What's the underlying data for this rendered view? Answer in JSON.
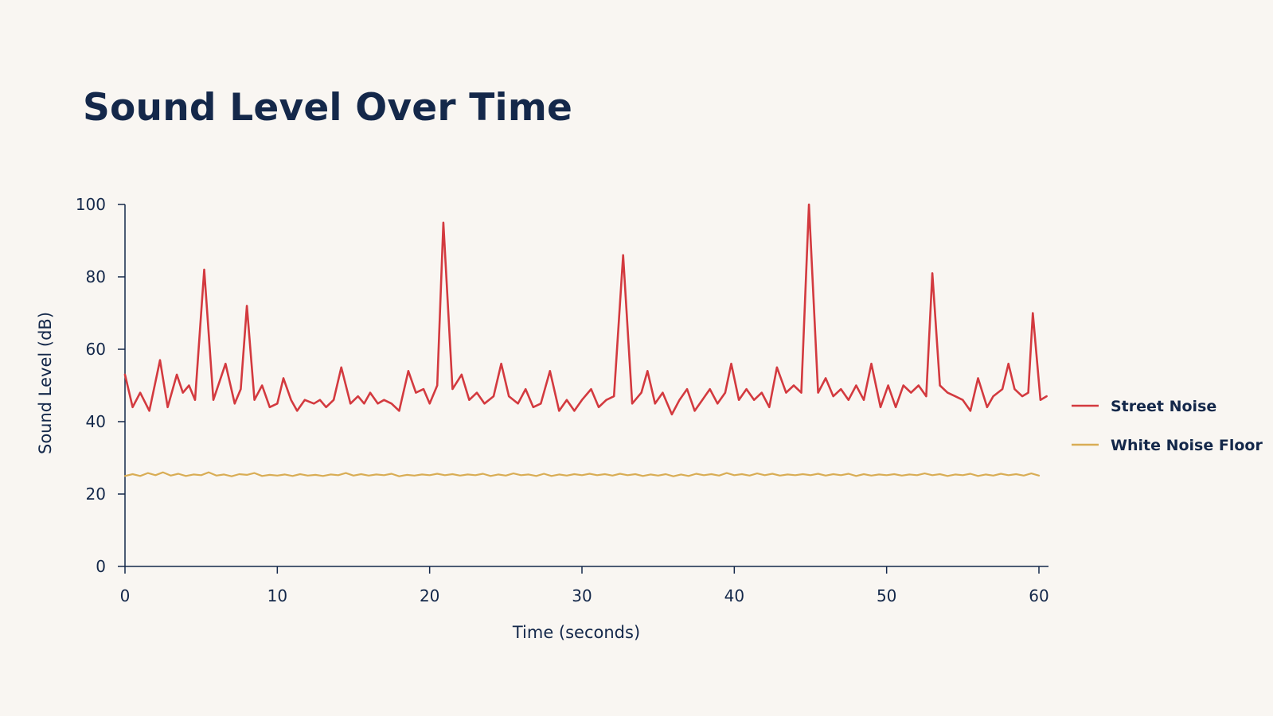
{
  "chart_data": {
    "type": "line",
    "title": "Sound Level Over Time",
    "xlabel": "Time (seconds)",
    "ylabel": "Sound Level (dB)",
    "xlim": [
      0,
      60
    ],
    "ylim": [
      0,
      100
    ],
    "xticks": [
      0,
      10,
      20,
      30,
      40,
      50,
      60
    ],
    "yticks": [
      0,
      20,
      40,
      60,
      80,
      100
    ],
    "grid": false,
    "legend_position": "right",
    "series": [
      {
        "name": "Street Noise",
        "color": "#d33a3f",
        "points": [
          [
            0,
            53
          ],
          [
            0.5,
            44
          ],
          [
            1.0,
            48
          ],
          [
            1.6,
            43
          ],
          [
            2.3,
            57
          ],
          [
            2.8,
            44
          ],
          [
            3.4,
            53
          ],
          [
            3.8,
            48
          ],
          [
            4.2,
            50
          ],
          [
            4.6,
            46
          ],
          [
            5.2,
            82
          ],
          [
            5.8,
            46
          ],
          [
            6.6,
            56
          ],
          [
            7.2,
            45
          ],
          [
            7.6,
            49
          ],
          [
            8.0,
            72
          ],
          [
            8.5,
            46
          ],
          [
            9.0,
            50
          ],
          [
            9.5,
            44
          ],
          [
            10.0,
            45
          ],
          [
            10.4,
            52
          ],
          [
            10.9,
            46
          ],
          [
            11.3,
            43
          ],
          [
            11.8,
            46
          ],
          [
            12.4,
            45
          ],
          [
            12.8,
            46
          ],
          [
            13.2,
            44
          ],
          [
            13.7,
            46
          ],
          [
            14.2,
            55
          ],
          [
            14.8,
            45
          ],
          [
            15.3,
            47
          ],
          [
            15.7,
            45
          ],
          [
            16.1,
            48
          ],
          [
            16.6,
            45
          ],
          [
            17.0,
            46
          ],
          [
            17.5,
            45
          ],
          [
            18.0,
            43
          ],
          [
            18.6,
            54
          ],
          [
            19.1,
            48
          ],
          [
            19.6,
            49
          ],
          [
            20.0,
            45
          ],
          [
            20.5,
            50
          ],
          [
            20.9,
            95
          ],
          [
            21.5,
            49
          ],
          [
            22.1,
            53
          ],
          [
            22.6,
            46
          ],
          [
            23.1,
            48
          ],
          [
            23.6,
            45
          ],
          [
            24.2,
            47
          ],
          [
            24.7,
            56
          ],
          [
            25.2,
            47
          ],
          [
            25.8,
            45
          ],
          [
            26.3,
            49
          ],
          [
            26.8,
            44
          ],
          [
            27.3,
            45
          ],
          [
            27.9,
            54
          ],
          [
            28.5,
            43
          ],
          [
            29.0,
            46
          ],
          [
            29.5,
            43
          ],
          [
            30.0,
            46
          ],
          [
            30.6,
            49
          ],
          [
            31.1,
            44
          ],
          [
            31.6,
            46
          ],
          [
            32.1,
            47
          ],
          [
            32.7,
            86
          ],
          [
            33.3,
            45
          ],
          [
            33.9,
            48
          ],
          [
            34.3,
            54
          ],
          [
            34.8,
            45
          ],
          [
            35.3,
            48
          ],
          [
            35.9,
            42
          ],
          [
            36.4,
            46
          ],
          [
            36.9,
            49
          ],
          [
            37.4,
            43
          ],
          [
            37.9,
            46
          ],
          [
            38.4,
            49
          ],
          [
            38.9,
            45
          ],
          [
            39.4,
            48
          ],
          [
            39.8,
            56
          ],
          [
            40.3,
            46
          ],
          [
            40.8,
            49
          ],
          [
            41.3,
            46
          ],
          [
            41.8,
            48
          ],
          [
            42.3,
            44
          ],
          [
            42.8,
            55
          ],
          [
            43.4,
            48
          ],
          [
            43.9,
            50
          ],
          [
            44.4,
            48
          ],
          [
            44.9,
            100
          ],
          [
            45.5,
            48
          ],
          [
            46.0,
            52
          ],
          [
            46.5,
            47
          ],
          [
            47.0,
            49
          ],
          [
            47.5,
            46
          ],
          [
            48.0,
            50
          ],
          [
            48.5,
            46
          ],
          [
            49.0,
            56
          ],
          [
            49.6,
            44
          ],
          [
            50.1,
            50
          ],
          [
            50.6,
            44
          ],
          [
            51.1,
            50
          ],
          [
            51.6,
            48
          ],
          [
            52.1,
            50
          ],
          [
            52.6,
            47
          ],
          [
            53.0,
            81
          ],
          [
            53.5,
            50
          ],
          [
            54.0,
            48
          ],
          [
            54.5,
            47
          ],
          [
            55.0,
            46
          ],
          [
            55.5,
            43
          ],
          [
            56.0,
            52
          ],
          [
            56.6,
            44
          ],
          [
            57.0,
            47
          ],
          [
            57.6,
            49
          ],
          [
            58.0,
            56
          ],
          [
            58.4,
            49
          ],
          [
            58.9,
            47
          ],
          [
            59.3,
            48
          ],
          [
            59.6,
            70
          ],
          [
            60.1,
            46
          ],
          [
            60.5,
            47
          ]
        ]
      },
      {
        "name": "White Noise Floor",
        "color": "#d9ad55",
        "points": [
          [
            0,
            25
          ],
          [
            0.5,
            25.5
          ],
          [
            1.0,
            25
          ],
          [
            1.5,
            25.8
          ],
          [
            2.0,
            25.2
          ],
          [
            2.5,
            26
          ],
          [
            3.0,
            25.1
          ],
          [
            3.5,
            25.6
          ],
          [
            4.0,
            25
          ],
          [
            4.5,
            25.4
          ],
          [
            5.0,
            25.2
          ],
          [
            5.5,
            26
          ],
          [
            6.0,
            25.1
          ],
          [
            6.5,
            25.4
          ],
          [
            7.0,
            24.9
          ],
          [
            7.5,
            25.5
          ],
          [
            8.0,
            25.3
          ],
          [
            8.5,
            25.8
          ],
          [
            9.0,
            25
          ],
          [
            9.5,
            25.3
          ],
          [
            10.0,
            25.1
          ],
          [
            10.5,
            25.4
          ],
          [
            11.0,
            25
          ],
          [
            11.5,
            25.5
          ],
          [
            12.0,
            25.1
          ],
          [
            12.5,
            25.3
          ],
          [
            13.0,
            25
          ],
          [
            13.5,
            25.4
          ],
          [
            14.0,
            25.2
          ],
          [
            14.5,
            25.8
          ],
          [
            15.0,
            25.1
          ],
          [
            15.5,
            25.5
          ],
          [
            16.0,
            25.1
          ],
          [
            16.5,
            25.4
          ],
          [
            17.0,
            25.2
          ],
          [
            17.5,
            25.6
          ],
          [
            18.0,
            24.9
          ],
          [
            18.5,
            25.3
          ],
          [
            19.0,
            25.1
          ],
          [
            19.5,
            25.4
          ],
          [
            20.0,
            25.2
          ],
          [
            20.5,
            25.6
          ],
          [
            21.0,
            25.2
          ],
          [
            21.5,
            25.5
          ],
          [
            22.0,
            25.1
          ],
          [
            22.5,
            25.4
          ],
          [
            23.0,
            25.2
          ],
          [
            23.5,
            25.6
          ],
          [
            24.0,
            25
          ],
          [
            24.5,
            25.4
          ],
          [
            25.0,
            25.1
          ],
          [
            25.5,
            25.7
          ],
          [
            26.0,
            25.2
          ],
          [
            26.5,
            25.4
          ],
          [
            27.0,
            25
          ],
          [
            27.5,
            25.6
          ],
          [
            28.0,
            25
          ],
          [
            28.5,
            25.4
          ],
          [
            29.0,
            25.1
          ],
          [
            29.5,
            25.5
          ],
          [
            30.0,
            25.2
          ],
          [
            30.5,
            25.6
          ],
          [
            31.0,
            25.2
          ],
          [
            31.5,
            25.5
          ],
          [
            32.0,
            25.1
          ],
          [
            32.5,
            25.6
          ],
          [
            33.0,
            25.2
          ],
          [
            33.5,
            25.5
          ],
          [
            34.0,
            25
          ],
          [
            34.5,
            25.4
          ],
          [
            35.0,
            25.1
          ],
          [
            35.5,
            25.5
          ],
          [
            36.0,
            24.9
          ],
          [
            36.5,
            25.4
          ],
          [
            37.0,
            25
          ],
          [
            37.5,
            25.6
          ],
          [
            38.0,
            25.2
          ],
          [
            38.5,
            25.5
          ],
          [
            39.0,
            25.1
          ],
          [
            39.5,
            25.8
          ],
          [
            40.0,
            25.2
          ],
          [
            40.5,
            25.5
          ],
          [
            41.0,
            25.1
          ],
          [
            41.5,
            25.7
          ],
          [
            42.0,
            25.2
          ],
          [
            42.5,
            25.6
          ],
          [
            43.0,
            25.1
          ],
          [
            43.5,
            25.4
          ],
          [
            44.0,
            25.2
          ],
          [
            44.5,
            25.5
          ],
          [
            45.0,
            25.2
          ],
          [
            45.5,
            25.6
          ],
          [
            46.0,
            25.1
          ],
          [
            46.5,
            25.5
          ],
          [
            47.0,
            25.2
          ],
          [
            47.5,
            25.6
          ],
          [
            48.0,
            25
          ],
          [
            48.5,
            25.5
          ],
          [
            49.0,
            25.1
          ],
          [
            49.5,
            25.4
          ],
          [
            50.0,
            25.2
          ],
          [
            50.5,
            25.5
          ],
          [
            51.0,
            25.1
          ],
          [
            51.5,
            25.4
          ],
          [
            52.0,
            25.2
          ],
          [
            52.5,
            25.7
          ],
          [
            53.0,
            25.2
          ],
          [
            53.5,
            25.5
          ],
          [
            54.0,
            25
          ],
          [
            54.5,
            25.4
          ],
          [
            55.0,
            25.2
          ],
          [
            55.5,
            25.6
          ],
          [
            56.0,
            25
          ],
          [
            56.5,
            25.4
          ],
          [
            57.0,
            25.1
          ],
          [
            57.5,
            25.6
          ],
          [
            58.0,
            25.2
          ],
          [
            58.5,
            25.5
          ],
          [
            59.0,
            25.1
          ],
          [
            59.5,
            25.7
          ],
          [
            60.0,
            25.1
          ]
        ]
      }
    ]
  }
}
